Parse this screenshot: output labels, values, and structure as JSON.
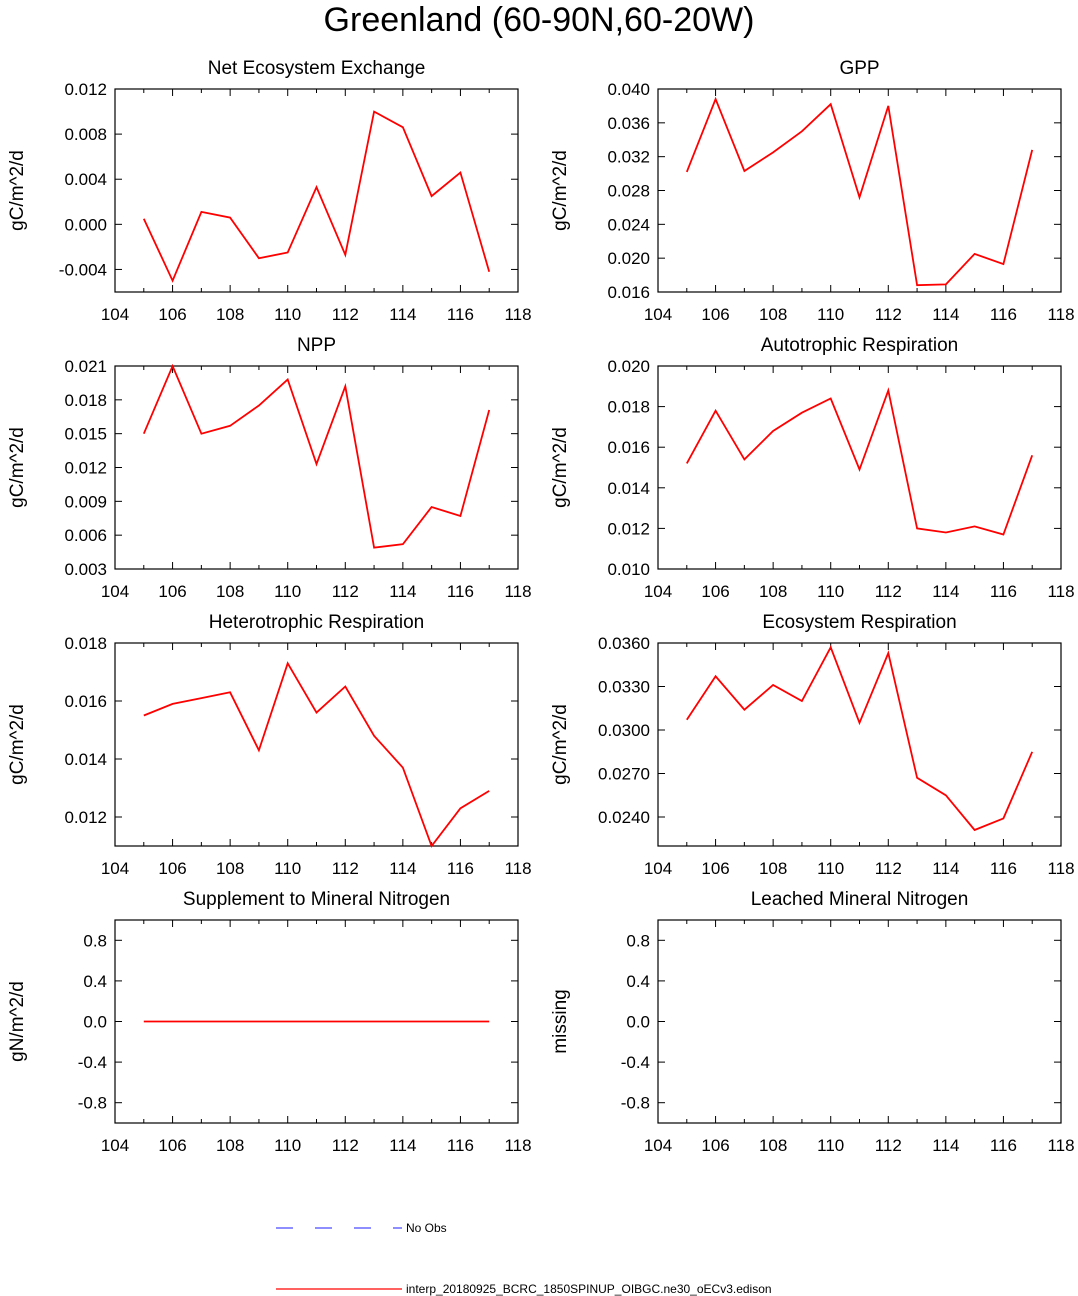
{
  "title": "Greenland (60-90N,60-20W)",
  "chart_data": [
    {
      "type": "line",
      "title": "Net Ecosystem Exchange",
      "ylabel": "gC/m^2/d",
      "xlim": [
        104,
        118
      ],
      "xticks": [
        104,
        106,
        108,
        110,
        112,
        114,
        116,
        118
      ],
      "ylim": [
        -0.006,
        0.012
      ],
      "yticks": [
        -0.004,
        0.0,
        0.004,
        0.008,
        0.012
      ],
      "ytick_labels": [
        "-0.004",
        "0.000",
        "0.004",
        "0.008",
        "0.012"
      ],
      "x": [
        105,
        106,
        107,
        108,
        109,
        110,
        111,
        112,
        113,
        114,
        115,
        116,
        117
      ],
      "values": [
        0.0005,
        -0.005,
        0.0011,
        0.0006,
        -0.003,
        -0.0025,
        0.0033,
        -0.0027,
        0.01,
        0.0086,
        0.0025,
        0.0046,
        -0.0042
      ]
    },
    {
      "type": "line",
      "title": "GPP",
      "ylabel": "gC/m^2/d",
      "xlim": [
        104,
        118
      ],
      "xticks": [
        104,
        106,
        108,
        110,
        112,
        114,
        116,
        118
      ],
      "ylim": [
        0.016,
        0.04
      ],
      "yticks": [
        0.016,
        0.02,
        0.024,
        0.028,
        0.032,
        0.036,
        0.04
      ],
      "ytick_labels": [
        "0.016",
        "0.020",
        "0.024",
        "0.028",
        "0.032",
        "0.036",
        "0.040"
      ],
      "x": [
        105,
        106,
        107,
        108,
        109,
        110,
        111,
        112,
        113,
        114,
        115,
        116,
        117
      ],
      "values": [
        0.0302,
        0.0388,
        0.0303,
        0.0325,
        0.035,
        0.0382,
        0.0272,
        0.038,
        0.0168,
        0.0169,
        0.0205,
        0.0193,
        0.0328
      ]
    },
    {
      "type": "line",
      "title": "NPP",
      "ylabel": "gC/m^2/d",
      "xlim": [
        104,
        118
      ],
      "xticks": [
        104,
        106,
        108,
        110,
        112,
        114,
        116,
        118
      ],
      "ylim": [
        0.003,
        0.021
      ],
      "yticks": [
        0.003,
        0.006,
        0.009,
        0.012,
        0.015,
        0.018,
        0.021
      ],
      "ytick_labels": [
        "0.003",
        "0.006",
        "0.009",
        "0.012",
        "0.015",
        "0.018",
        "0.021"
      ],
      "x": [
        105,
        106,
        107,
        108,
        109,
        110,
        111,
        112,
        113,
        114,
        115,
        116,
        117
      ],
      "values": [
        0.015,
        0.021,
        0.015,
        0.0157,
        0.0175,
        0.0198,
        0.0123,
        0.0192,
        0.0049,
        0.0052,
        0.0085,
        0.0077,
        0.0171
      ]
    },
    {
      "type": "line",
      "title": "Autotrophic Respiration",
      "ylabel": "gC/m^2/d",
      "xlim": [
        104,
        118
      ],
      "xticks": [
        104,
        106,
        108,
        110,
        112,
        114,
        116,
        118
      ],
      "ylim": [
        0.01,
        0.02
      ],
      "yticks": [
        0.01,
        0.012,
        0.014,
        0.016,
        0.018,
        0.02
      ],
      "ytick_labels": [
        "0.010",
        "0.012",
        "0.014",
        "0.016",
        "0.018",
        "0.020"
      ],
      "x": [
        105,
        106,
        107,
        108,
        109,
        110,
        111,
        112,
        113,
        114,
        115,
        116,
        117
      ],
      "values": [
        0.0152,
        0.0178,
        0.0154,
        0.0168,
        0.0177,
        0.0184,
        0.0149,
        0.0188,
        0.012,
        0.0118,
        0.0121,
        0.0117,
        0.0156
      ]
    },
    {
      "type": "line",
      "title": "Heterotrophic Respiration",
      "ylabel": "gC/m^2/d",
      "xlim": [
        104,
        118
      ],
      "xticks": [
        104,
        106,
        108,
        110,
        112,
        114,
        116,
        118
      ],
      "ylim": [
        0.011,
        0.018
      ],
      "yticks": [
        0.012,
        0.014,
        0.016,
        0.018
      ],
      "ytick_labels": [
        "0.012",
        "0.014",
        "0.016",
        "0.018"
      ],
      "x": [
        105,
        106,
        107,
        108,
        109,
        110,
        111,
        112,
        113,
        114,
        115,
        116,
        117
      ],
      "values": [
        0.0155,
        0.0159,
        0.0161,
        0.0163,
        0.0143,
        0.0173,
        0.0156,
        0.0165,
        0.0148,
        0.0137,
        0.011,
        0.0123,
        0.0129
      ]
    },
    {
      "type": "line",
      "title": "Ecosystem Respiration",
      "ylabel": "gC/m^2/d",
      "xlim": [
        104,
        118
      ],
      "xticks": [
        104,
        106,
        108,
        110,
        112,
        114,
        116,
        118
      ],
      "ylim": [
        0.022,
        0.036
      ],
      "yticks": [
        0.024,
        0.027,
        0.03,
        0.033,
        0.036
      ],
      "ytick_labels": [
        "0.0240",
        "0.0270",
        "0.0300",
        "0.0330",
        "0.0360"
      ],
      "x": [
        105,
        106,
        107,
        108,
        109,
        110,
        111,
        112,
        113,
        114,
        115,
        116,
        117
      ],
      "values": [
        0.0307,
        0.0337,
        0.0314,
        0.0331,
        0.032,
        0.0357,
        0.0305,
        0.0353,
        0.0267,
        0.0255,
        0.0231,
        0.0239,
        0.0285
      ]
    },
    {
      "type": "line",
      "title": "Supplement to Mineral Nitrogen",
      "ylabel": "gN/m^2/d",
      "xlim": [
        104,
        118
      ],
      "xticks": [
        104,
        106,
        108,
        110,
        112,
        114,
        116,
        118
      ],
      "ylim": [
        -1.0,
        1.0
      ],
      "yticks": [
        -0.8,
        -0.4,
        0.0,
        0.4,
        0.8
      ],
      "ytick_labels": [
        "-0.8",
        "-0.4",
        "0.0",
        "0.4",
        "0.8"
      ],
      "x": [
        105,
        106,
        107,
        108,
        109,
        110,
        111,
        112,
        113,
        114,
        115,
        116,
        117
      ],
      "values": [
        0,
        0,
        0,
        0,
        0,
        0,
        0,
        0,
        0,
        0,
        0,
        0,
        0
      ]
    },
    {
      "type": "line",
      "title": "Leached Mineral Nitrogen",
      "ylabel": "missing",
      "xlim": [
        104,
        118
      ],
      "xticks": [
        104,
        106,
        108,
        110,
        112,
        114,
        116,
        118
      ],
      "ylim": [
        -1.0,
        1.0
      ],
      "yticks": [
        -0.8,
        -0.4,
        0.0,
        0.4,
        0.8
      ],
      "ytick_labels": [
        "-0.8",
        "-0.4",
        "0.0",
        "0.4",
        "0.8"
      ],
      "x": [],
      "values": []
    }
  ],
  "legend": [
    {
      "label": "No Obs",
      "color": "#4b4bff",
      "style": "dashed"
    },
    {
      "label": "interp_20180925_BCRC_1850SPINUP_OIBGC.ne30_oECv3.edison",
      "color": "#ff0000",
      "style": "solid"
    }
  ],
  "line_color": "#ff0000"
}
